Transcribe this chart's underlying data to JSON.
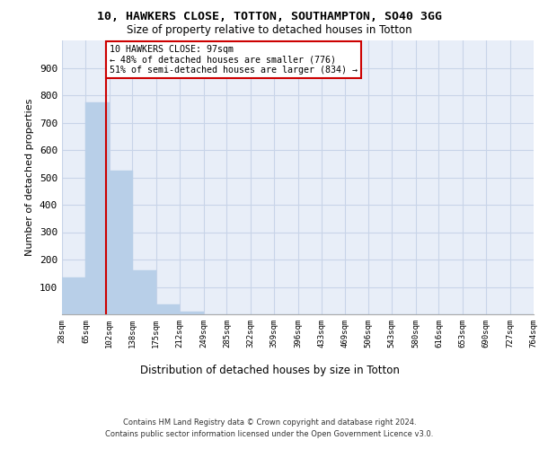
{
  "title_line1": "10, HAWKERS CLOSE, TOTTON, SOUTHAMPTON, SO40 3GG",
  "title_line2": "Size of property relative to detached houses in Totton",
  "xlabel": "Distribution of detached houses by size in Totton",
  "ylabel": "Number of detached properties",
  "footer_line1": "Contains HM Land Registry data © Crown copyright and database right 2024.",
  "footer_line2": "Contains public sector information licensed under the Open Government Licence v3.0.",
  "bin_edges": [
    28,
    65,
    102,
    138,
    175,
    212,
    249,
    285,
    322,
    359,
    396,
    433,
    469,
    506,
    543,
    580,
    616,
    653,
    690,
    727,
    764
  ],
  "bar_heights": [
    135,
    775,
    525,
    160,
    35,
    10,
    0,
    0,
    0,
    0,
    0,
    0,
    0,
    0,
    0,
    0,
    0,
    0,
    0,
    0
  ],
  "bar_color": "#b8cfe8",
  "bar_edge_color": "#b8cfe8",
  "grid_color": "#c8d4e8",
  "background_color": "#e8eef8",
  "property_size": 97,
  "red_line_color": "#cc0000",
  "annotation_line1": "10 HAWKERS CLOSE: 97sqm",
  "annotation_line2": "← 48% of detached houses are smaller (776)",
  "annotation_line3": "51% of semi-detached houses are larger (834) →",
  "annotation_box_color": "#ffffff",
  "annotation_border_color": "#cc0000",
  "ylim": [
    0,
    1000
  ],
  "yticks": [
    0,
    100,
    200,
    300,
    400,
    500,
    600,
    700,
    800,
    900,
    1000
  ]
}
